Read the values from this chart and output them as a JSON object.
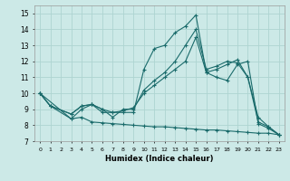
{
  "xlabel": "Humidex (Indice chaleur)",
  "xlim": [
    -0.5,
    23.5
  ],
  "ylim": [
    7,
    15.5
  ],
  "xticks": [
    0,
    1,
    2,
    3,
    4,
    5,
    6,
    7,
    8,
    9,
    10,
    11,
    12,
    13,
    14,
    15,
    16,
    17,
    18,
    19,
    20,
    21,
    22,
    23
  ],
  "yticks": [
    7,
    8,
    9,
    10,
    11,
    12,
    13,
    14,
    15
  ],
  "bg_color": "#cce9e7",
  "grid_color": "#aed4d1",
  "line_color": "#1a6b6b",
  "line1_x": [
    0,
    1,
    3,
    4,
    5,
    6,
    7,
    8,
    9,
    10,
    11,
    12,
    13,
    14,
    15,
    16,
    17,
    18,
    19,
    20,
    21,
    22,
    23
  ],
  "line1_y": [
    10.0,
    9.2,
    8.7,
    9.2,
    9.3,
    8.8,
    8.8,
    8.8,
    8.8,
    11.5,
    12.8,
    13.0,
    13.8,
    14.2,
    14.9,
    11.3,
    11.0,
    10.8,
    11.8,
    12.0,
    8.1,
    7.8,
    7.4
  ],
  "line2_x": [
    0,
    1,
    3,
    4,
    5,
    6,
    7,
    8,
    9,
    10,
    11,
    12,
    13,
    14,
    15,
    16,
    17,
    18,
    19,
    20,
    21,
    22,
    23
  ],
  "line2_y": [
    10.0,
    9.2,
    8.4,
    9.0,
    9.3,
    9.0,
    8.5,
    9.0,
    9.0,
    10.2,
    10.8,
    11.3,
    12.0,
    13.0,
    14.0,
    11.5,
    11.7,
    12.0,
    11.9,
    11.0,
    8.2,
    7.9,
    7.4
  ],
  "line3_x": [
    0,
    3,
    4,
    5,
    6,
    7,
    8,
    9,
    10,
    11,
    12,
    13,
    14,
    15,
    16,
    17,
    18,
    19,
    20,
    21,
    22,
    23
  ],
  "line3_y": [
    10.0,
    8.4,
    8.5,
    8.2,
    8.15,
    8.1,
    8.05,
    8.0,
    7.95,
    7.9,
    7.9,
    7.85,
    7.8,
    7.75,
    7.7,
    7.7,
    7.65,
    7.6,
    7.55,
    7.5,
    7.5,
    7.4
  ],
  "line4_x": [
    0,
    1,
    3,
    4,
    5,
    6,
    7,
    8,
    9,
    10,
    11,
    12,
    13,
    14,
    15,
    16,
    17,
    18,
    19,
    20,
    21,
    22,
    23
  ],
  "line4_y": [
    10.0,
    9.2,
    8.7,
    9.2,
    9.3,
    9.0,
    8.8,
    8.9,
    9.1,
    10.0,
    10.5,
    11.0,
    11.5,
    12.0,
    13.5,
    11.3,
    11.5,
    11.8,
    12.1,
    11.0,
    8.5,
    7.9,
    7.4
  ]
}
